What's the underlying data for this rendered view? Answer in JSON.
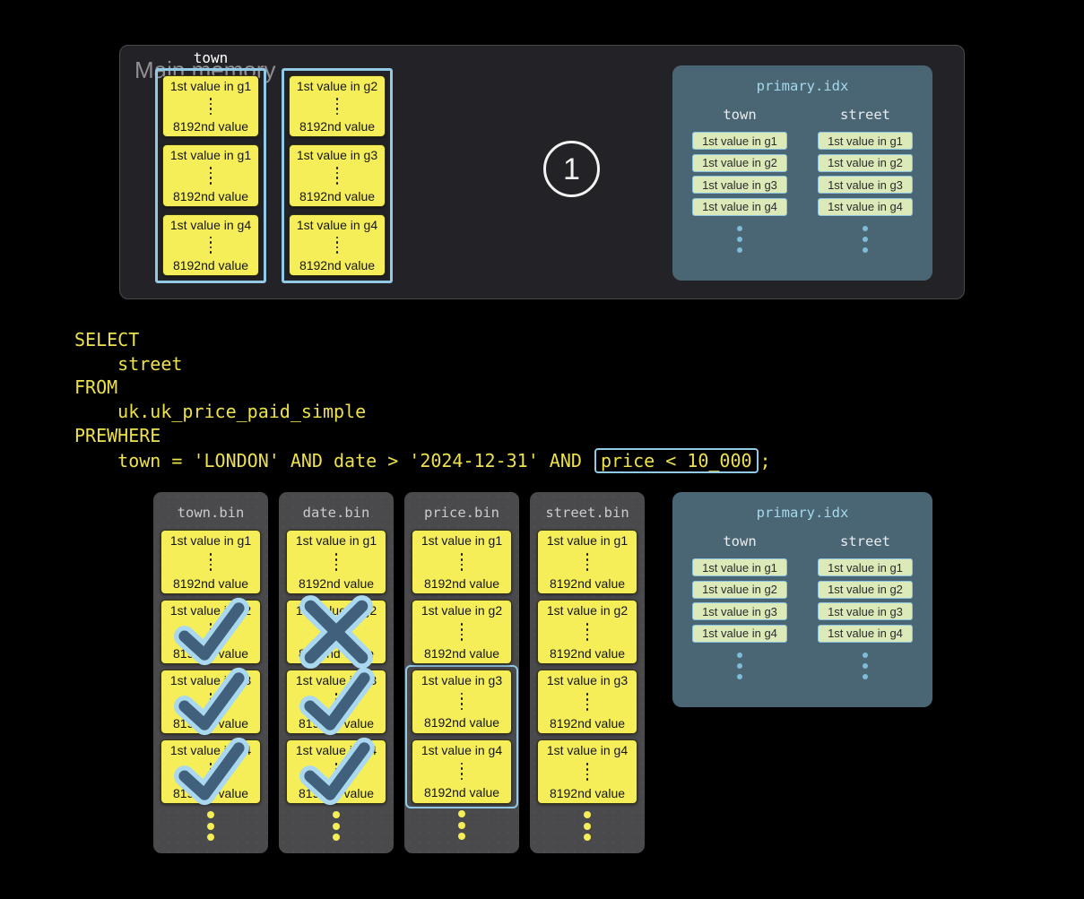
{
  "colors": {
    "accent_blue": "#92C9E6",
    "block_yellow": "#F5EE58",
    "sql_yellow": "#EDE14D",
    "panel_dark": "#232327",
    "panel_dark_border": "#4A4A4E",
    "bin_gray": "#4A4A4D",
    "panel_slate": "#4A6573",
    "slate_title": "#A5DAEC",
    "slate_dot": "#7FBCDA",
    "chip_green": "#DBEAB8",
    "chip_border": "#8CC3DE",
    "mark_dark": "#40607B",
    "mark_light": "#A9D8F0",
    "muted_gray": "#8F8F94"
  },
  "top_panel": {
    "title": "Main memory",
    "column_label": "town",
    "step_label": "1",
    "stacks": [
      {
        "granules": [
          {
            "top": "1st value in g1",
            "bottom": "8192nd value"
          },
          {
            "top": "1st value in g1",
            "bottom": "8192nd value"
          },
          {
            "top": "1st value in g4",
            "bottom": "8192nd value"
          }
        ]
      },
      {
        "granules": [
          {
            "top": "1st value in g2",
            "bottom": "8192nd value"
          },
          {
            "top": "1st value in g3",
            "bottom": "8192nd value"
          },
          {
            "top": "1st value in g4",
            "bottom": "8192nd value"
          }
        ]
      }
    ]
  },
  "primary_index": {
    "title": "primary.idx",
    "columns": [
      {
        "label": "town",
        "entries": [
          "1st value in g1",
          "1st value in g2",
          "1st value in g3",
          "1st value in g4"
        ]
      },
      {
        "label": "street",
        "entries": [
          "1st value in g1",
          "1st value in g2",
          "1st value in g3",
          "1st value in g4"
        ]
      }
    ]
  },
  "sql": {
    "lines": [
      "SELECT",
      "    street",
      "FROM",
      "    uk.uk_price_paid_simple",
      "PREWHERE"
    ],
    "last_line": {
      "prefix": "    town = 'LONDON' AND date > '2024-12-31' AND ",
      "boxed": "price < 10_000",
      "suffix": ";"
    }
  },
  "bins": [
    {
      "title": "town.bin",
      "granules": [
        {
          "top": "1st value in g1",
          "bottom": "8192nd value",
          "mark": "none"
        },
        {
          "top": "1st value in g2",
          "bottom": "8192nd value",
          "mark": "check"
        },
        {
          "top": "1st value in g3",
          "bottom": "8192nd value",
          "mark": "check"
        },
        {
          "top": "1st value in g4",
          "bottom": "8192nd value",
          "mark": "check"
        }
      ]
    },
    {
      "title": "date.bin",
      "granules": [
        {
          "top": "1st value in g1",
          "bottom": "8192nd value",
          "mark": "none"
        },
        {
          "top": "1st value in g2",
          "bottom": "8192nd value",
          "mark": "x"
        },
        {
          "top": "1st value in g3",
          "bottom": "8192nd value",
          "mark": "check"
        },
        {
          "top": "1st value in g4",
          "bottom": "8192nd value",
          "mark": "check"
        }
      ]
    },
    {
      "title": "price.bin",
      "selected_indexes": [
        2,
        3
      ],
      "granules": [
        {
          "top": "1st value in g1",
          "bottom": "8192nd value",
          "mark": "none"
        },
        {
          "top": "1st value in g2",
          "bottom": "8192nd value",
          "mark": "none"
        },
        {
          "top": "1st value in g3",
          "bottom": "8192nd value",
          "mark": "none"
        },
        {
          "top": "1st value in g4",
          "bottom": "8192nd value",
          "mark": "none"
        }
      ]
    },
    {
      "title": "street.bin",
      "granules": [
        {
          "top": "1st value in g1",
          "bottom": "8192nd value",
          "mark": "none"
        },
        {
          "top": "1st value in g2",
          "bottom": "8192nd value",
          "mark": "none"
        },
        {
          "top": "1st value in g3",
          "bottom": "8192nd value",
          "mark": "none"
        },
        {
          "top": "1st value in g4",
          "bottom": "8192nd value",
          "mark": "none"
        }
      ]
    }
  ]
}
